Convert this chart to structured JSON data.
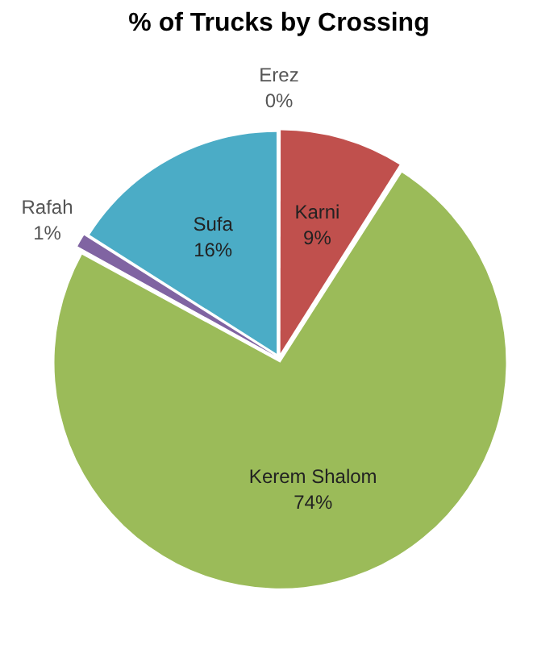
{
  "chart_data": {
    "type": "pie",
    "title": "% of Trucks by Crossing",
    "categories": [
      "Erez",
      "Karni",
      "Kerem Shalom",
      "Rafah",
      "Sufa"
    ],
    "values": [
      0,
      9,
      74,
      1,
      16
    ],
    "value_labels": [
      "0%",
      "9%",
      "74%",
      "1%",
      "16%"
    ],
    "colors": [
      "#4f81bd",
      "#c0504d",
      "#9bbb59",
      "#8064a2",
      "#4bacc6"
    ],
    "legend": false
  }
}
